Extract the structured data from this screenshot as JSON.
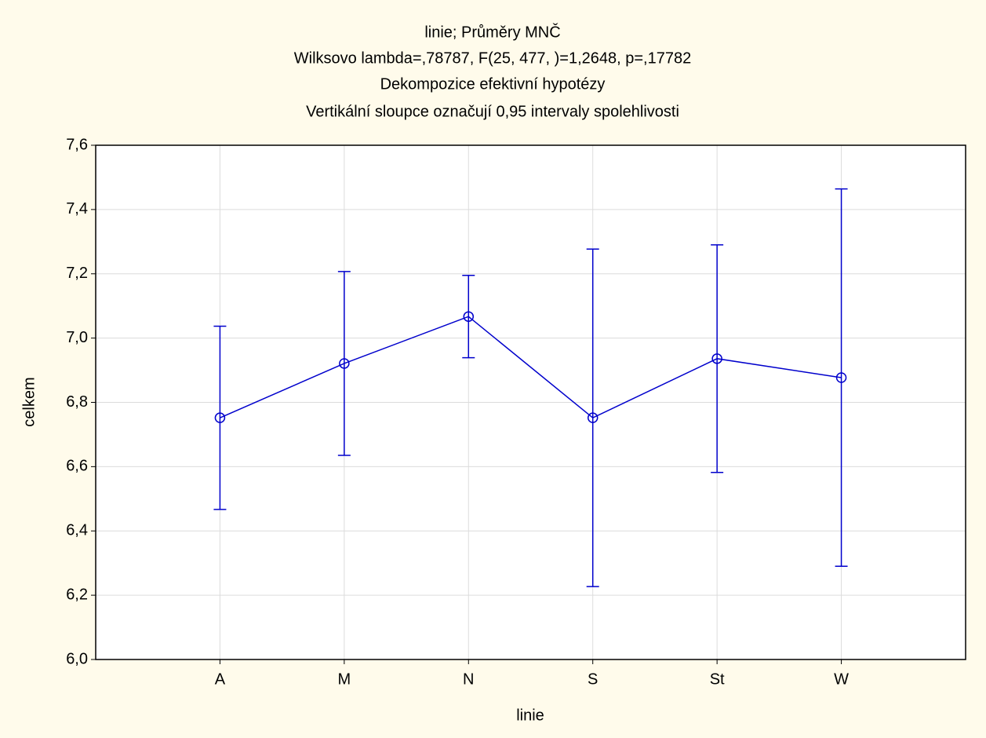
{
  "chart_data": {
    "type": "line",
    "title": "linie; Průměry MNČ",
    "subtitles": [
      "Wilksovo lambda=,78787, F(25, 477,  )=1,2648, p=,17782",
      "Dekompozice efektivní hypotézy",
      "Vertikální sloupce označují 0,95 intervaly spolehlivosti"
    ],
    "xlabel": "linie",
    "ylabel": "celkem",
    "categories": [
      "A",
      "M",
      "N",
      "S",
      "St",
      "W"
    ],
    "values": [
      6.752,
      6.921,
      7.067,
      6.752,
      6.936,
      6.877
    ],
    "errors": [
      0.285,
      0.286,
      0.128,
      0.525,
      0.354,
      0.587
    ],
    "color": "#0000cc",
    "ylim": [
      6.0,
      7.6
    ],
    "yticks": [
      {
        "value": 6.0,
        "label": "6,0"
      },
      {
        "value": 6.2,
        "label": "6,2"
      },
      {
        "value": 6.4,
        "label": "6,4"
      },
      {
        "value": 6.6,
        "label": "6,6"
      },
      {
        "value": 6.8,
        "label": "6,8"
      },
      {
        "value": 7.0,
        "label": "7,0"
      },
      {
        "value": 7.2,
        "label": "7,2"
      },
      {
        "value": 7.4,
        "label": "7,4"
      },
      {
        "value": 7.6,
        "label": "7,6"
      }
    ],
    "grid": true
  }
}
